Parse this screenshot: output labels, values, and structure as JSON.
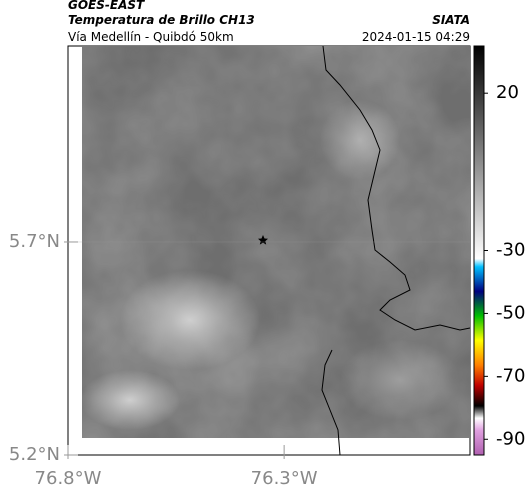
{
  "header": {
    "title": "GOES-EAST",
    "subtitle": "Temperatura de Brillo CH13",
    "route": "Vía Medellín - Quibdó 50km",
    "source": "SIATA",
    "timestamp": "2024-01-15 04:29"
  },
  "chart_data": {
    "type": "map",
    "xlim": [
      -76.8,
      -75.87
    ],
    "ylim": [
      5.2,
      6.16
    ],
    "xticks": [
      {
        "value": -76.8,
        "label": "76.8°W"
      },
      {
        "value": -76.3,
        "label": "76.3°W"
      }
    ],
    "yticks": [
      {
        "value": 5.2,
        "label": "5.2°N"
      },
      {
        "value": 5.7,
        "label": "5.7°N"
      }
    ],
    "colorbar": {
      "lim": [
        -95,
        35
      ],
      "ticks": [
        20,
        -30,
        -50,
        -70,
        -90
      ]
    }
  }
}
